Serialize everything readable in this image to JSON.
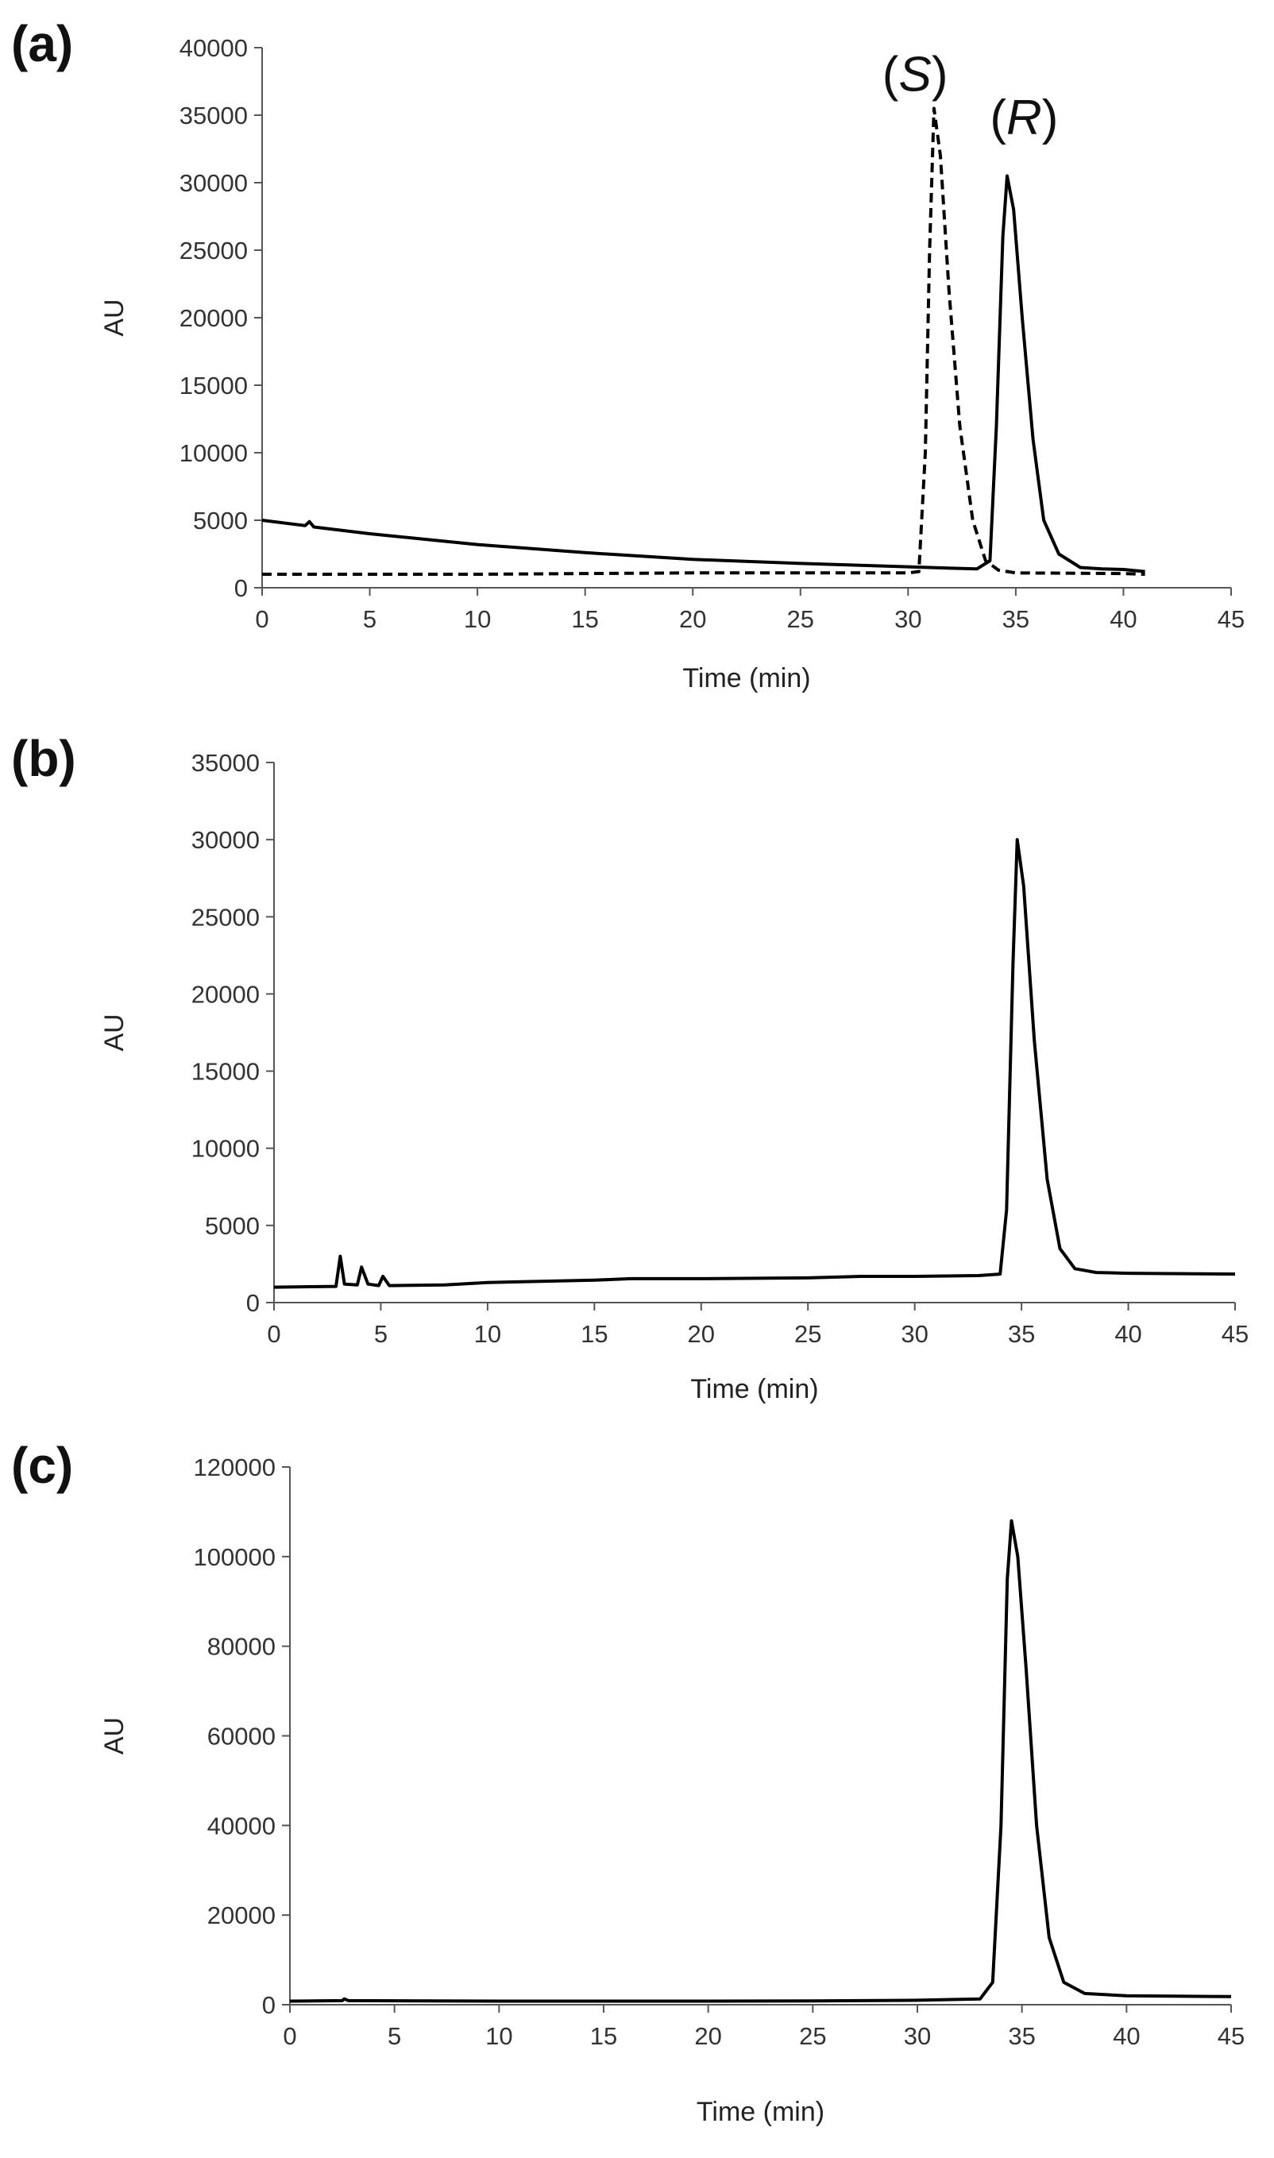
{
  "chart_data": [
    {
      "type": "line",
      "panel_label": "(a)",
      "xlabel": "Time (min)",
      "ylabel": "AU",
      "xlim": [
        0,
        45
      ],
      "ylim": [
        0,
        40000
      ],
      "x_ticks": [
        "0",
        "5",
        "10",
        "15",
        "20",
        "25",
        "30",
        "35",
        "40",
        "45"
      ],
      "y_ticks": [
        "0",
        "5000",
        "10000",
        "15000",
        "20000",
        "25000",
        "30000",
        "35000",
        "40000"
      ],
      "grid": false,
      "annotations": [
        {
          "text_open": "(",
          "text_italic": "S",
          "text_close": ")",
          "x": 28.8,
          "y": 36800
        },
        {
          "text_open": "(",
          "text_italic": "R",
          "text_close": ")",
          "x": 33.8,
          "y": 33600
        }
      ],
      "series": [
        {
          "style": "solid",
          "points": [
            [
              0,
              5000
            ],
            [
              2,
              4600
            ],
            [
              2.2,
              4900
            ],
            [
              2.4,
              4500
            ],
            [
              5,
              4000
            ],
            [
              10,
              3200
            ],
            [
              15,
              2600
            ],
            [
              20,
              2100
            ],
            [
              25,
              1800
            ],
            [
              30,
              1550
            ],
            [
              32,
              1450
            ],
            [
              33.2,
              1400
            ],
            [
              33.8,
              2000
            ],
            [
              34.1,
              12000
            ],
            [
              34.4,
              26000
            ],
            [
              34.6,
              30500
            ],
            [
              34.9,
              28000
            ],
            [
              35.3,
              20000
            ],
            [
              35.8,
              11000
            ],
            [
              36.3,
              5000
            ],
            [
              37,
              2500
            ],
            [
              38,
              1500
            ],
            [
              39,
              1400
            ],
            [
              40,
              1350
            ],
            [
              41,
              1200
            ]
          ]
        },
        {
          "style": "dashed",
          "points": [
            [
              0,
              1000
            ],
            [
              5,
              1000
            ],
            [
              10,
              1000
            ],
            [
              15,
              1050
            ],
            [
              20,
              1100
            ],
            [
              25,
              1100
            ],
            [
              30,
              1100
            ],
            [
              30.5,
              1200
            ],
            [
              30.8,
              10000
            ],
            [
              31.0,
              25000
            ],
            [
              31.2,
              35500
            ],
            [
              31.5,
              32000
            ],
            [
              31.9,
              22000
            ],
            [
              32.4,
              12000
            ],
            [
              33,
              5000
            ],
            [
              33.6,
              2000
            ],
            [
              34.2,
              1300
            ],
            [
              35,
              1100
            ],
            [
              40,
              1050
            ],
            [
              41,
              1000
            ]
          ]
        }
      ]
    },
    {
      "type": "line",
      "panel_label": "(b)",
      "xlabel": "Time (min)",
      "ylabel": "AU",
      "xlim": [
        0,
        45
      ],
      "ylim": [
        0,
        35000
      ],
      "x_ticks": [
        "0",
        "5",
        "10",
        "15",
        "20",
        "25",
        "30",
        "35",
        "40",
        "45"
      ],
      "y_ticks": [
        "0",
        "5000",
        "10000",
        "15000",
        "20000",
        "25000",
        "30000",
        "35000"
      ],
      "grid": false,
      "series": [
        {
          "style": "solid",
          "points": [
            [
              0,
              1000
            ],
            [
              2.9,
              1050
            ],
            [
              3.1,
              3000
            ],
            [
              3.3,
              1200
            ],
            [
              3.9,
              1150
            ],
            [
              4.1,
              2300
            ],
            [
              4.4,
              1200
            ],
            [
              4.9,
              1100
            ],
            [
              5.1,
              1700
            ],
            [
              5.4,
              1100
            ],
            [
              8,
              1150
            ],
            [
              10,
              1300
            ],
            [
              15,
              1450
            ],
            [
              16.7,
              1550
            ],
            [
              20,
              1550
            ],
            [
              25,
              1600
            ],
            [
              27.5,
              1700
            ],
            [
              30,
              1700
            ],
            [
              33,
              1750
            ],
            [
              34,
              1850
            ],
            [
              34.3,
              6000
            ],
            [
              34.6,
              22000
            ],
            [
              34.8,
              30000
            ],
            [
              35.1,
              27000
            ],
            [
              35.6,
              17000
            ],
            [
              36.2,
              8000
            ],
            [
              36.8,
              3500
            ],
            [
              37.5,
              2200
            ],
            [
              38.5,
              1950
            ],
            [
              40,
              1900
            ],
            [
              45,
              1850
            ]
          ]
        }
      ]
    },
    {
      "type": "line",
      "panel_label": "(c)",
      "xlabel": "Time (min)",
      "ylabel": "AU",
      "xlim": [
        0,
        45
      ],
      "ylim": [
        0,
        120000
      ],
      "x_ticks": [
        "0",
        "5",
        "10",
        "15",
        "20",
        "25",
        "30",
        "35",
        "40",
        "45"
      ],
      "y_ticks": [
        "0",
        "20000",
        "40000",
        "60000",
        "80000",
        "100000",
        "120000"
      ],
      "grid": false,
      "series": [
        {
          "style": "solid",
          "points": [
            [
              0,
              800
            ],
            [
              2.5,
              900
            ],
            [
              2.6,
              1300
            ],
            [
              2.8,
              900
            ],
            [
              10,
              800
            ],
            [
              20,
              800
            ],
            [
              25,
              850
            ],
            [
              30,
              1000
            ],
            [
              33,
              1300
            ],
            [
              33.6,
              5000
            ],
            [
              34,
              40000
            ],
            [
              34.3,
              95000
            ],
            [
              34.5,
              108000
            ],
            [
              34.8,
              100000
            ],
            [
              35.2,
              75000
            ],
            [
              35.7,
              40000
            ],
            [
              36.3,
              15000
            ],
            [
              37,
              5000
            ],
            [
              38,
              2500
            ],
            [
              40,
              2000
            ],
            [
              45,
              1800
            ]
          ]
        }
      ]
    }
  ]
}
